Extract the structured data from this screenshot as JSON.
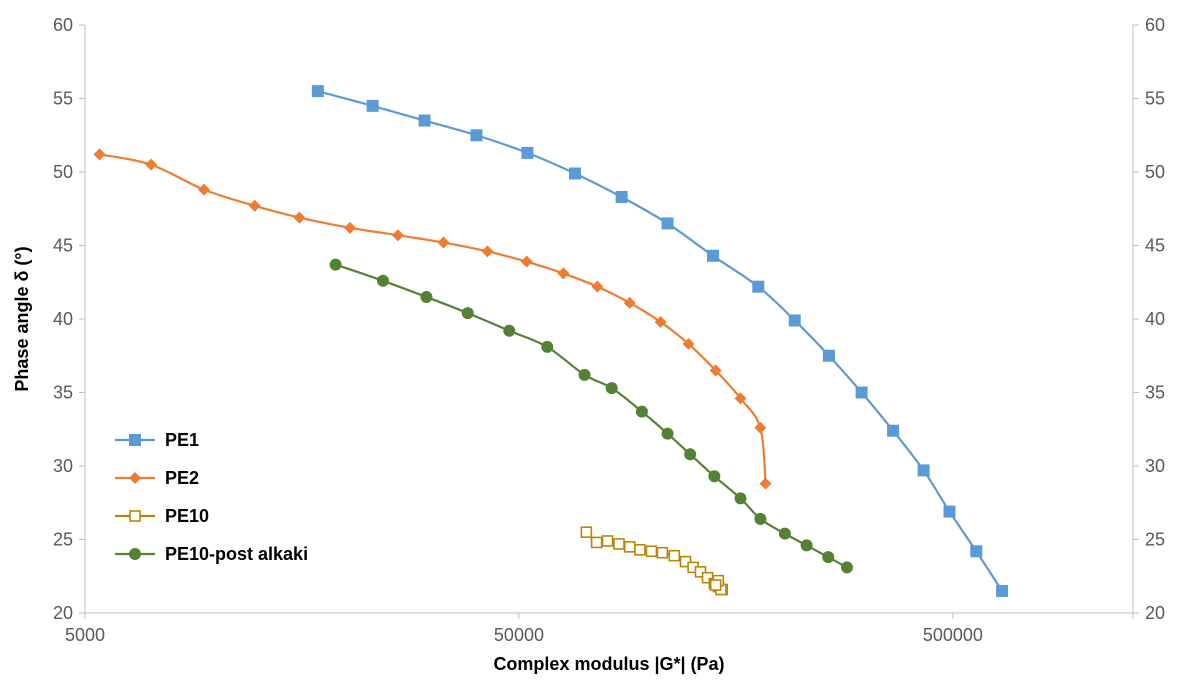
{
  "chart_data": {
    "type": "line",
    "xlabel": "Complex modulus |G*| (Pa)",
    "ylabel": "Phase angle δ (°)",
    "xscale": "log",
    "xlim": [
      5000,
      1300000
    ],
    "ylim": [
      20,
      60
    ],
    "x_ticks": [
      5000,
      50000,
      500000
    ],
    "x_tick_labels": [
      "5000",
      "50000",
      "500000"
    ],
    "y_ticks": [
      20,
      25,
      30,
      35,
      40,
      45,
      50,
      55,
      60
    ],
    "y_tick_labels": [
      "20",
      "25",
      "30",
      "35",
      "40",
      "45",
      "50",
      "55",
      "60"
    ],
    "secondary_y_axis": true,
    "grid": false,
    "legend_position": "bottom-left",
    "series": [
      {
        "name": "PE1",
        "marker": "filled-square",
        "color": "#5B9BD5",
        "x": [
          17200,
          23000,
          30300,
          39900,
          52300,
          67300,
          86200,
          110000,
          140000,
          178000,
          216000,
          259000,
          308000,
          364000,
          428000,
          491000,
          566000,
          649000
        ],
        "y": [
          55.5,
          54.5,
          53.5,
          52.5,
          51.3,
          49.9,
          48.3,
          46.5,
          44.3,
          42.2,
          39.9,
          37.5,
          35.0,
          32.4,
          29.7,
          26.9,
          24.2,
          21.5
        ]
      },
      {
        "name": "PE2",
        "marker": "filled-diamond",
        "color": "#ED7D31",
        "x": [
          5400,
          7100,
          9400,
          12300,
          15600,
          20400,
          26300,
          33500,
          42300,
          52100,
          63300,
          75800,
          90000,
          106000,
          123000,
          142000,
          162000,
          180000,
          185000
        ],
        "y": [
          51.2,
          50.5,
          48.8,
          47.7,
          46.9,
          46.2,
          45.7,
          45.2,
          44.6,
          43.9,
          43.1,
          42.2,
          41.1,
          39.8,
          38.3,
          36.5,
          34.6,
          32.6,
          28.8
        ]
      },
      {
        "name": "PE10",
        "marker": "open-square",
        "color": "#B8860B",
        "x": [
          71500,
          75500,
          80000,
          85000,
          90000,
          95000,
          101000,
          107000,
          114000,
          121000,
          126000,
          131000,
          136000,
          141000,
          144000,
          147000
        ],
        "y": [
          25.5,
          24.8,
          24.9,
          24.7,
          24.5,
          24.3,
          24.2,
          24.1,
          23.9,
          23.5,
          23.1,
          22.8,
          22.4,
          22.0,
          21.8,
          21.6
        ],
        "extra_points": [
          [
            146000,
            21.6
          ],
          [
            144000,
            22.2
          ],
          [
            142000,
            21.9
          ]
        ]
      },
      {
        "name": "PE10-post alkaki",
        "marker": "filled-circle",
        "color": "#548235",
        "x": [
          18900,
          24300,
          30600,
          38100,
          47500,
          58100,
          70800,
          81800,
          96000,
          110000,
          124000,
          141000,
          162000,
          180000,
          205000,
          230000,
          258000,
          285000
        ],
        "y": [
          43.7,
          42.6,
          41.5,
          40.4,
          39.2,
          38.1,
          36.2,
          35.3,
          33.7,
          32.2,
          30.8,
          29.3,
          27.8,
          26.4,
          25.4,
          24.6,
          23.8,
          23.1
        ]
      }
    ]
  }
}
